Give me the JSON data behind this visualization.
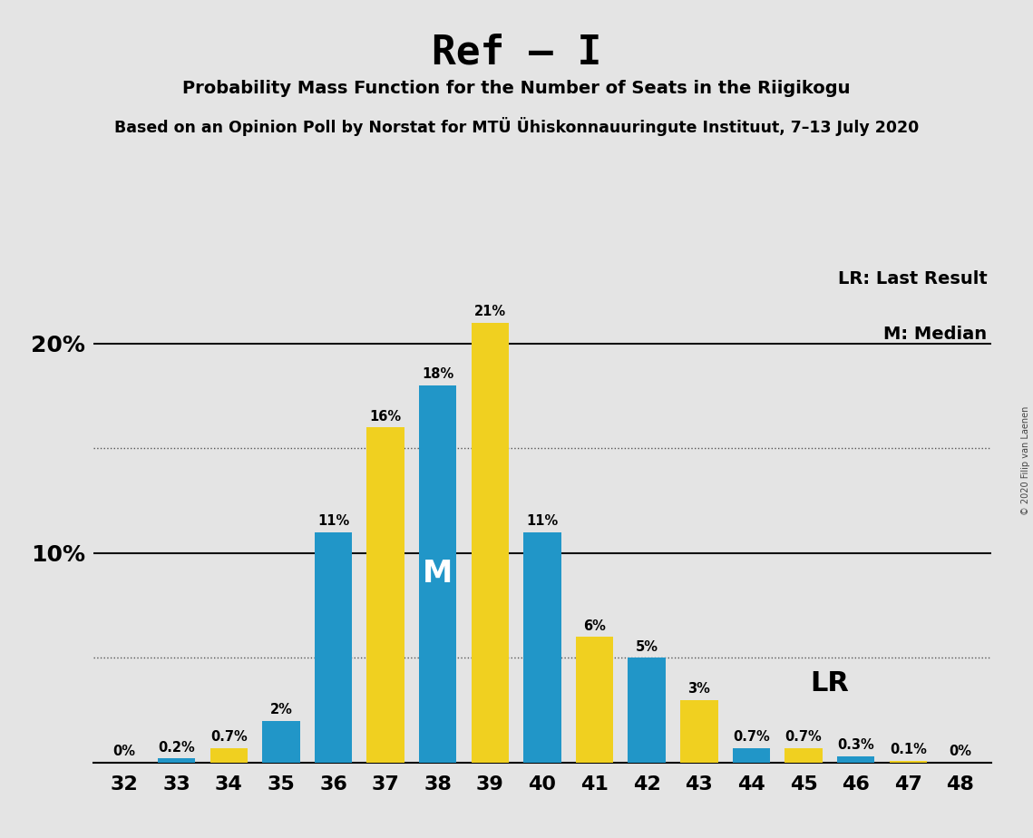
{
  "title": "Ref – I",
  "subtitle1": "Probability Mass Function for the Number of Seats in the Riigikogu",
  "subtitle2": "Based on an Opinion Poll by Norstat for MTÜ Ühiskonnauuringute Instituut, 7–13 July 2020",
  "copyright": "© 2020 Filip van Laenen",
  "seats": [
    32,
    33,
    34,
    35,
    36,
    37,
    38,
    39,
    40,
    41,
    42,
    43,
    44,
    45,
    46,
    47,
    48
  ],
  "values": [
    0.0,
    0.2,
    0.7,
    2.0,
    11.0,
    16.0,
    18.0,
    21.0,
    11.0,
    6.0,
    5.0,
    3.0,
    0.7,
    0.7,
    0.3,
    0.1,
    0.0
  ],
  "colors": [
    "#2196c8",
    "#2196c8",
    "#f0d020",
    "#2196c8",
    "#2196c8",
    "#f0d020",
    "#2196c8",
    "#f0d020",
    "#2196c8",
    "#f0d020",
    "#2196c8",
    "#f0d020",
    "#2196c8",
    "#f0d020",
    "#2196c8",
    "#f0d020",
    "#f0d020"
  ],
  "labels": [
    "0%",
    "0.2%",
    "0.7%",
    "2%",
    "11%",
    "16%",
    "18%",
    "21%",
    "11%",
    "6%",
    "5%",
    "3%",
    "0.7%",
    "0.7%",
    "0.3%",
    "0.1%",
    "0%"
  ],
  "blue_color": "#2196c8",
  "yellow_color": "#f0d020",
  "background_color": "#e4e4e4",
  "median_bar_idx": 7,
  "lr_bar_idx": 12,
  "ylim": [
    0,
    24
  ],
  "dotted_ylines": [
    5.0,
    15.0
  ],
  "solid_ylines": [
    10.0,
    20.0
  ],
  "legend_lr": "LR: Last Result",
  "legend_m": "M: Median",
  "lr_label": "LR"
}
